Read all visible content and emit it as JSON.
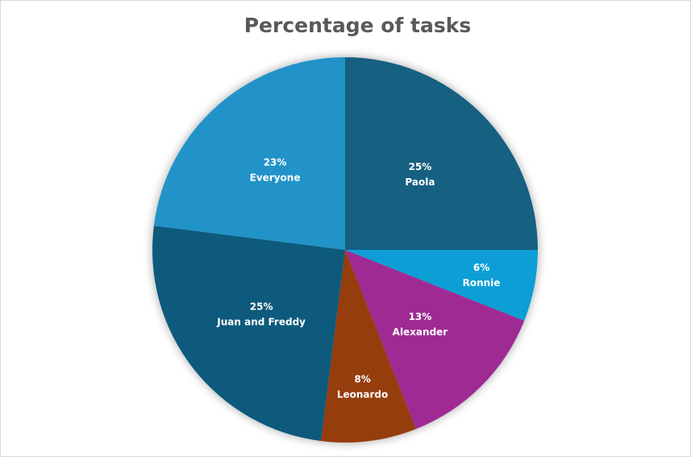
{
  "chart_data": {
    "type": "pie",
    "title": "Percentage of tasks",
    "start_angle_deg": 0,
    "direction": "clockwise",
    "slices": [
      {
        "label": "Paola",
        "value": 25,
        "display": "25%",
        "color": "#156082"
      },
      {
        "label": "Ronnie",
        "value": 6,
        "display": "6%",
        "color": "#0f9ed5"
      },
      {
        "label": "Alexander",
        "value": 13,
        "display": "13%",
        "color": "#a02b93"
      },
      {
        "label": "Leonardo",
        "value": 8,
        "display": "8%",
        "color": "#953c11"
      },
      {
        "label": "Juan and Freddy",
        "value": 25,
        "display": "25%",
        "color": "#0b5a7c"
      },
      {
        "label": "Everyone",
        "value": 23,
        "display": "23%",
        "color": "#2193c8"
      }
    ],
    "legend": "none",
    "data_labels": "inside (percentage and category name)"
  }
}
